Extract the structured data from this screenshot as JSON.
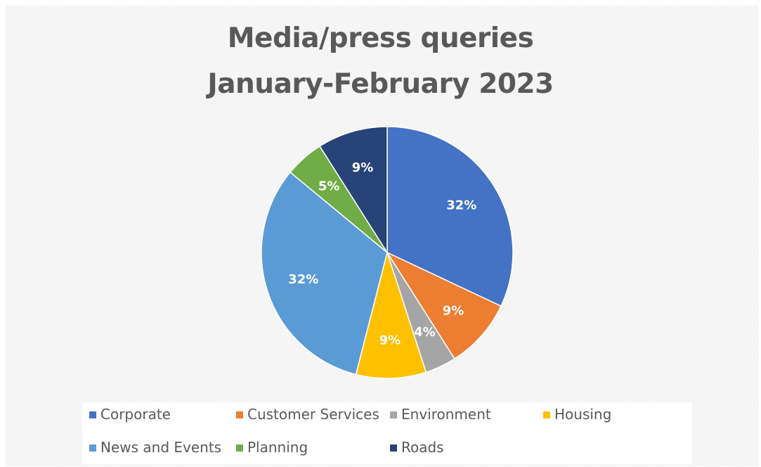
{
  "chart_data": {
    "type": "pie",
    "title": "Media/press queries",
    "subtitle": "January-February 2023",
    "categories": [
      "Corporate",
      "Customer Services",
      "Environment",
      "Housing",
      "News and Events",
      "Planning",
      "Roads"
    ],
    "values": [
      32,
      9,
      4,
      9,
      32,
      5,
      9
    ],
    "data_labels": [
      "32%",
      "9%",
      "4%",
      "9%",
      "32%",
      "5%",
      "9%"
    ],
    "colors": [
      "#4472c4",
      "#ed7d31",
      "#a5a5a5",
      "#ffc000",
      "#5b9bd5",
      "#70ad47",
      "#264478"
    ],
    "start_angle": "12 o'clock",
    "direction": "clockwise",
    "legend_position": "bottom"
  }
}
